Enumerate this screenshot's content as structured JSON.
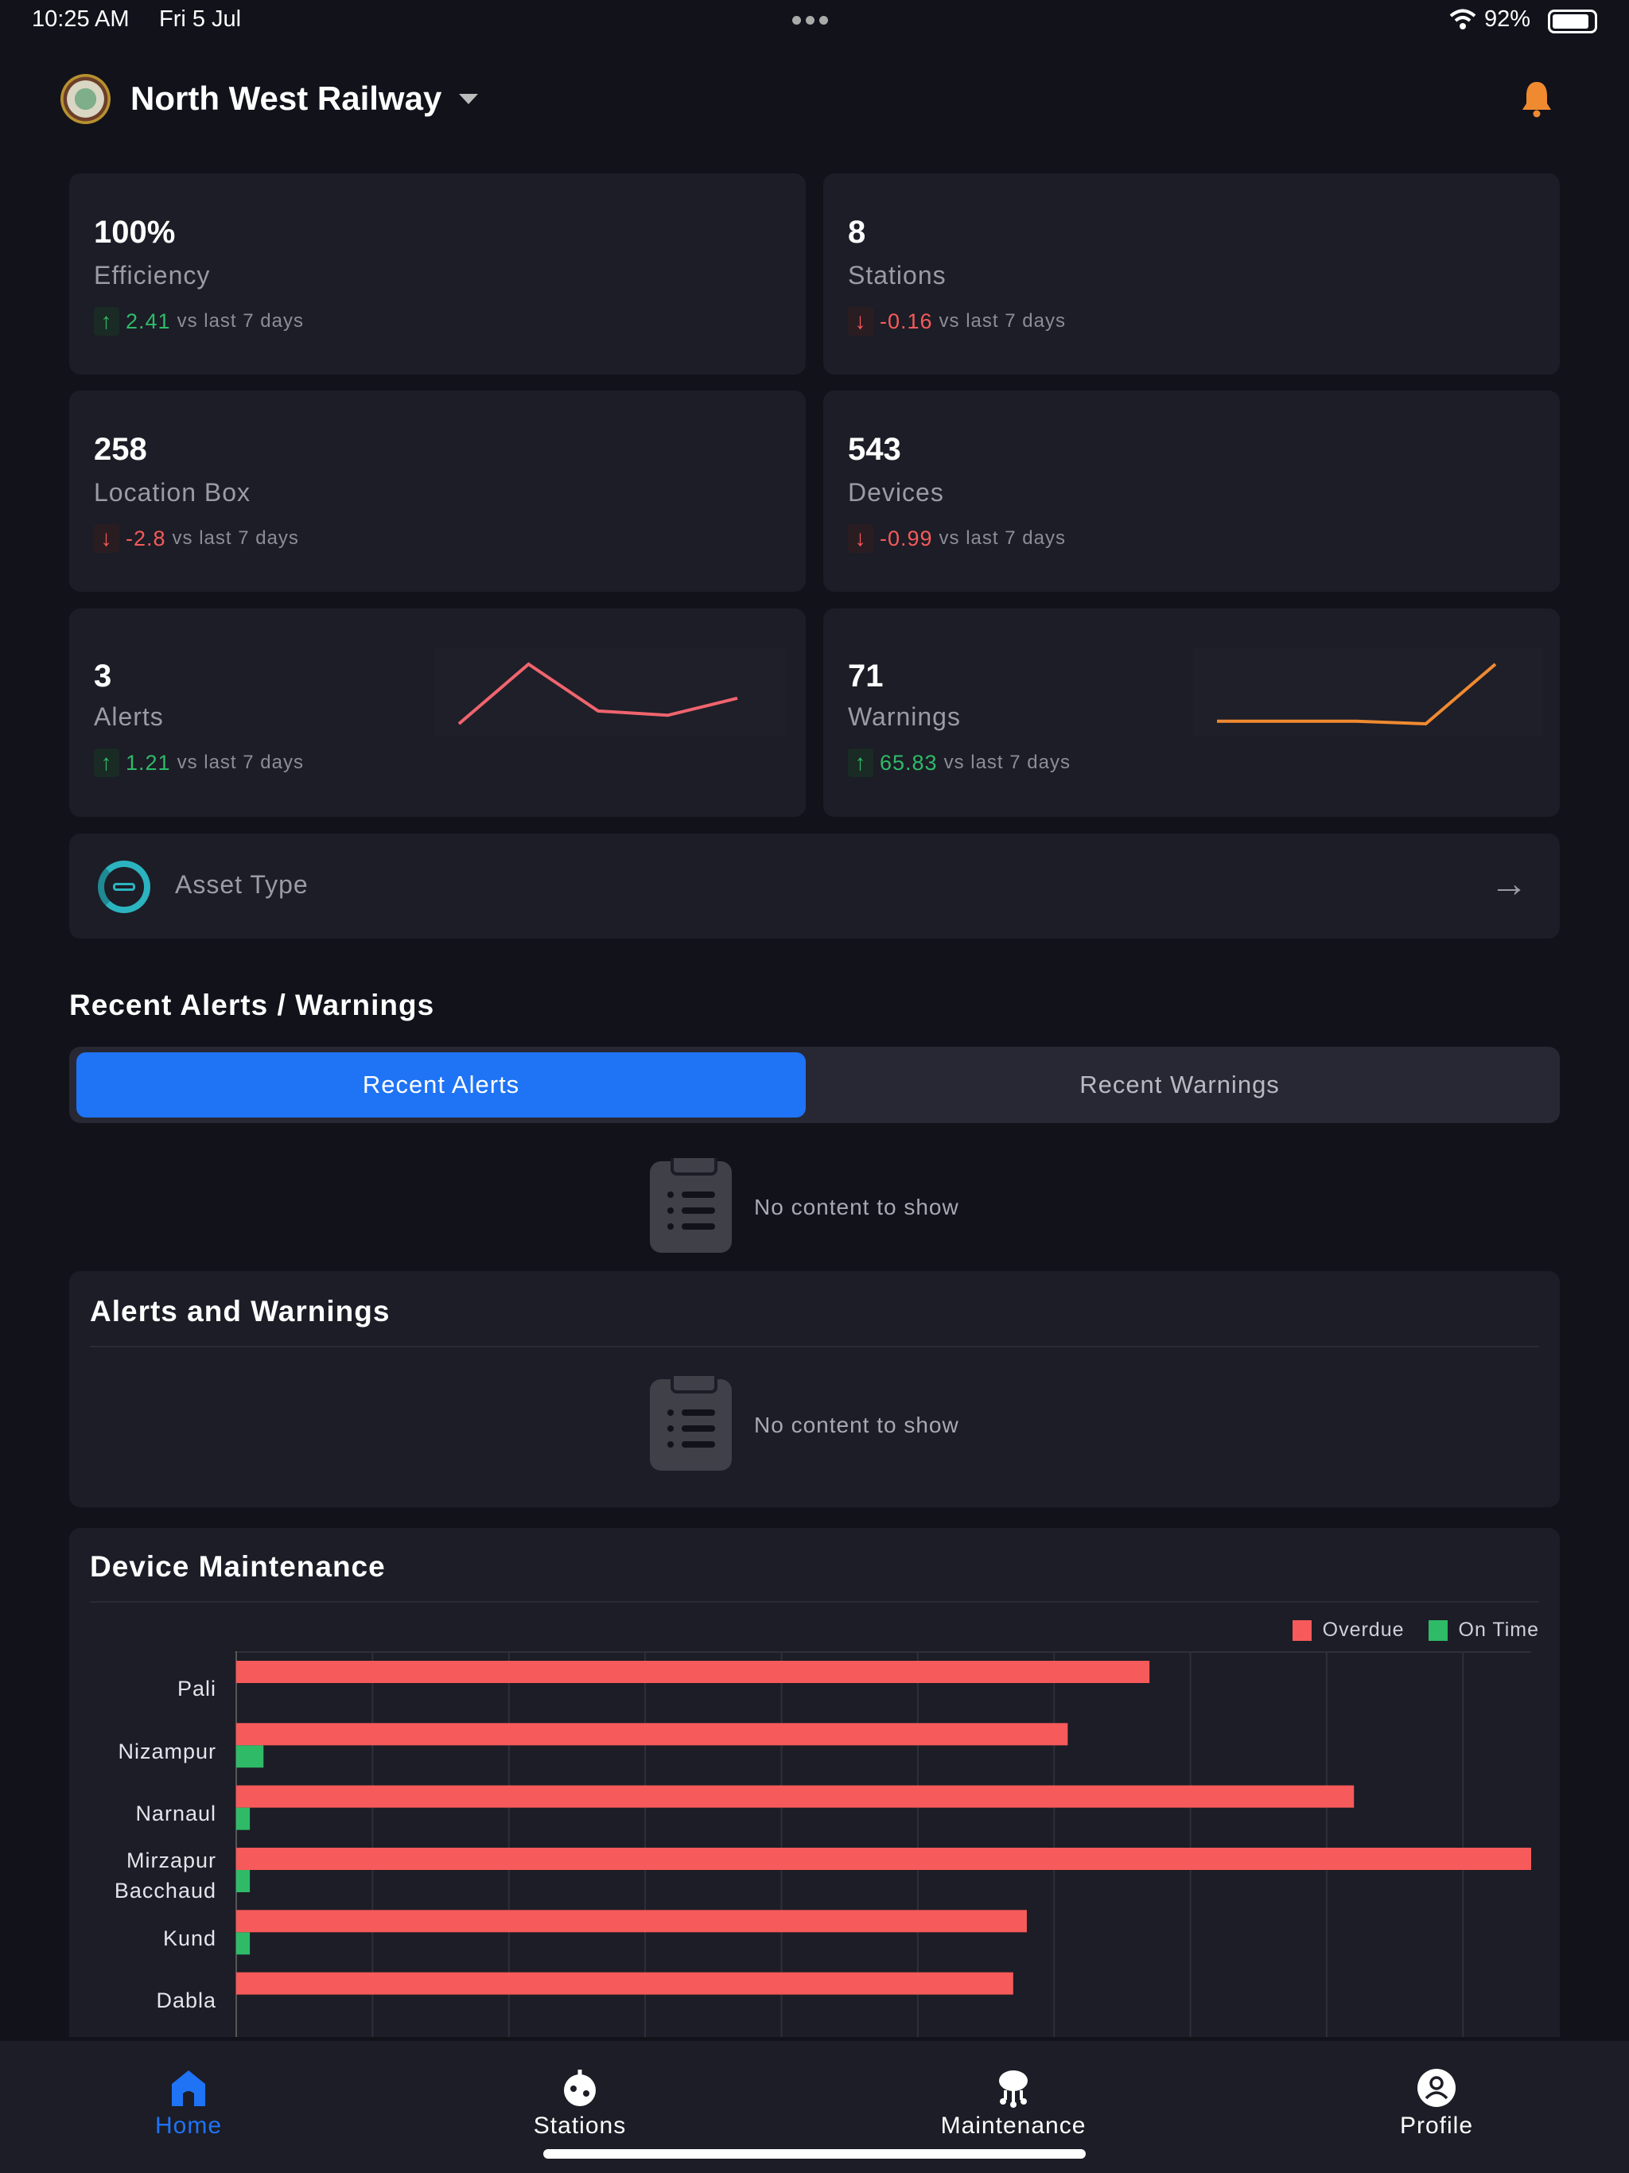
{
  "status_bar": {
    "time": "10:25 AM",
    "date": "Fri 5 Jul",
    "battery": "92%"
  },
  "header": {
    "title": "North West Railway"
  },
  "kpis": [
    {
      "value": "100%",
      "label": "Efficiency",
      "delta": "2.41",
      "trend": "up",
      "suffix": "vs last 7 days"
    },
    {
      "value": "8",
      "label": "Stations",
      "delta": "-0.16",
      "trend": "down",
      "suffix": "vs last 7 days"
    },
    {
      "value": "258",
      "label": "Location Box",
      "delta": "-2.8",
      "trend": "down",
      "suffix": "vs last 7 days"
    },
    {
      "value": "543",
      "label": "Devices",
      "delta": "-0.99",
      "trend": "down",
      "suffix": "vs last 7 days"
    },
    {
      "value": "3",
      "label": "Alerts",
      "delta": "1.21",
      "trend": "up",
      "suffix": "vs last 7 days",
      "sparkline": [
        2.0,
        3.4,
        2.3,
        2.2,
        2.6
      ],
      "color": "#f0646e"
    },
    {
      "value": "71",
      "label": "Warnings",
      "delta": "65.83",
      "trend": "up",
      "suffix": "vs last 7 days",
      "sparkline": [
        2.0,
        2.0,
        2.0,
        1.8,
        6.5
      ],
      "color": "#f08a30"
    }
  ],
  "asset_type": {
    "label": "Asset Type"
  },
  "recent": {
    "heading": "Recent Alerts / Warnings",
    "tabs": [
      "Recent Alerts",
      "Recent Warnings"
    ],
    "active_tab": 0,
    "empty_text": "No content to show"
  },
  "alerts_warnings": {
    "title": "Alerts and Warnings",
    "empty_text": "No content to show"
  },
  "chart_data": {
    "type": "bar",
    "orientation": "horizontal",
    "title": "Device Maintenance",
    "categories": [
      "Pali",
      "Nizampur",
      "Narnaul",
      "Mirzapur Bacchaud",
      "Kund",
      "Dabla"
    ],
    "series": [
      {
        "name": "Overdue",
        "color": "#f75a5a",
        "values": [
          67,
          61,
          82,
          95,
          58,
          57
        ]
      },
      {
        "name": "On Time",
        "color": "#2fba68",
        "values": [
          0,
          2,
          1,
          1,
          1,
          0
        ]
      }
    ],
    "xlim": [
      0,
      95
    ],
    "grid": true,
    "legend": "top-right"
  },
  "tabbar": [
    {
      "label": "Home",
      "icon": "home-icon",
      "active": true
    },
    {
      "label": "Stations",
      "icon": "stations-icon",
      "active": false
    },
    {
      "label": "Maintenance",
      "icon": "maintenance-icon",
      "active": false
    },
    {
      "label": "Profile",
      "icon": "profile-icon",
      "active": false
    }
  ],
  "colors": {
    "accent": "#1f73f5",
    "bg": "#11121a",
    "card": "#1c1d26",
    "up": "#2fba68",
    "down": "#f75a5a",
    "bell": "#f08a30"
  }
}
